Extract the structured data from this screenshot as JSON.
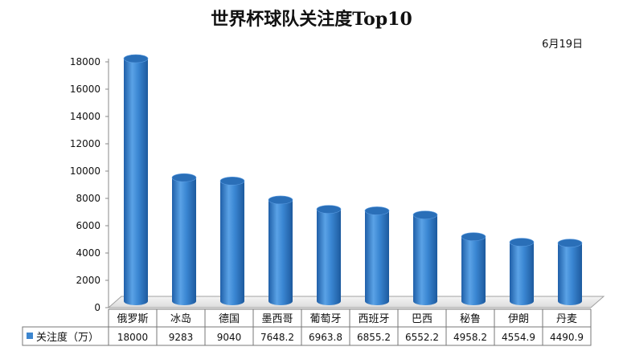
{
  "chart_data": {
    "type": "bar",
    "title": "世界杯球队关注度Top10",
    "subtitle": "6月19日",
    "categories": [
      "俄罗斯",
      "冰岛",
      "德国",
      "墨西哥",
      "葡萄牙",
      "西班牙",
      "巴西",
      "秘鲁",
      "伊朗",
      "丹麦"
    ],
    "series": [
      {
        "name": "关注度（万）",
        "values": [
          18000,
          9283,
          9040,
          7648.2,
          6963.8,
          6855.2,
          6552.2,
          4958.2,
          4554.9,
          4490.9
        ]
      }
    ],
    "value_labels": [
      "18000",
      "9283",
      "9040",
      "7648.2",
      "6963.8",
      "6855.2",
      "6552.2",
      "4958.2",
      "4554.9",
      "4490.9"
    ],
    "yticks": [
      "0",
      "2000",
      "4000",
      "6000",
      "8000",
      "10000",
      "12000",
      "14000",
      "16000",
      "18000"
    ],
    "ylim": [
      0,
      18000
    ],
    "grid": false,
    "legend": "data-table-left",
    "bar_color": "#3d86cf",
    "bar_top_color": "#2a6fb8"
  }
}
